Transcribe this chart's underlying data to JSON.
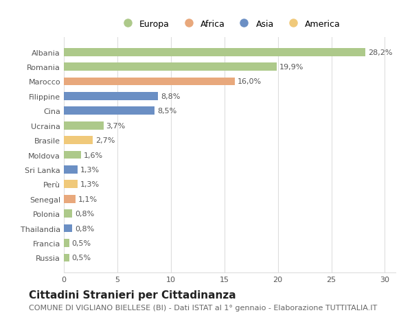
{
  "countries": [
    "Albania",
    "Romania",
    "Marocco",
    "Filippine",
    "Cina",
    "Ucraina",
    "Brasile",
    "Moldova",
    "Sri Lanka",
    "Perù",
    "Senegal",
    "Polonia",
    "Thailandia",
    "Francia",
    "Russia"
  ],
  "values": [
    28.2,
    19.9,
    16.0,
    8.8,
    8.5,
    3.7,
    2.7,
    1.6,
    1.3,
    1.3,
    1.1,
    0.8,
    0.8,
    0.5,
    0.5
  ],
  "categories": [
    "Europa",
    "Europa",
    "Africa",
    "Asia",
    "Asia",
    "Europa",
    "America",
    "Europa",
    "Asia",
    "America",
    "Africa",
    "Europa",
    "Asia",
    "Europa",
    "Europa"
  ],
  "labels": [
    "28,2%",
    "19,9%",
    "16,0%",
    "8,8%",
    "8,5%",
    "3,7%",
    "2,7%",
    "1,6%",
    "1,3%",
    "1,3%",
    "1,1%",
    "0,8%",
    "0,8%",
    "0,5%",
    "0,5%"
  ],
  "colors": {
    "Europa": "#adc98a",
    "Africa": "#e8a87c",
    "Asia": "#6b8fc4",
    "America": "#f0c97a"
  },
  "legend_labels": [
    "Europa",
    "Africa",
    "Asia",
    "America"
  ],
  "legend_colors": [
    "#adc98a",
    "#e8a87c",
    "#6b8fc4",
    "#f0c97a"
  ],
  "xlim": [
    0,
    31
  ],
  "xticks": [
    0,
    5,
    10,
    15,
    20,
    25,
    30
  ],
  "title": "Cittadini Stranieri per Cittadinanza",
  "subtitle": "COMUNE DI VIGLIANO BIELLESE (BI) - Dati ISTAT al 1° gennaio - Elaborazione TUTTITALIA.IT",
  "background_color": "#ffffff",
  "grid_color": "#dddddd",
  "bar_height": 0.55,
  "label_fontsize": 8,
  "tick_fontsize": 8,
  "title_fontsize": 11,
  "subtitle_fontsize": 8
}
